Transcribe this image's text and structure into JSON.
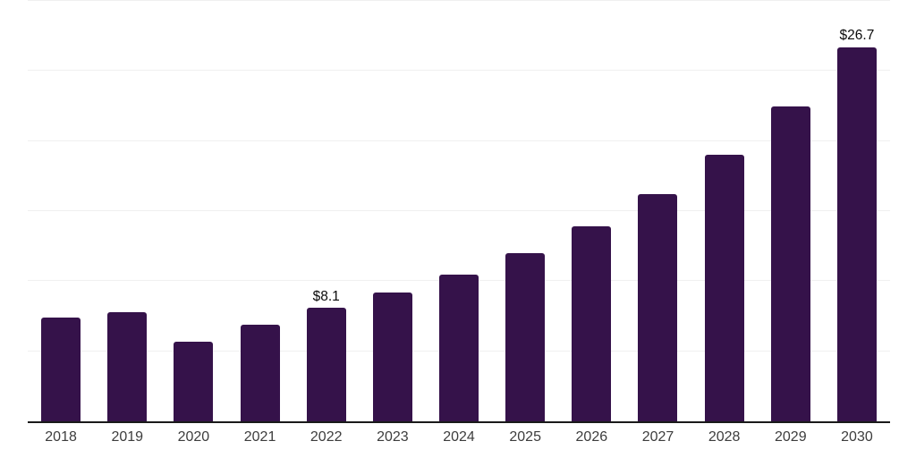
{
  "colors": {
    "background": "#ffffff",
    "bar": "#35124a",
    "gridline": "#f0f0f0",
    "axis_line": "#1a1a1a",
    "tick_label": "#3d3d3d",
    "data_label": "#0a0a0a"
  },
  "chart_data": {
    "type": "bar",
    "title": "",
    "xlabel": "",
    "ylabel": "",
    "categories": [
      "2018",
      "2019",
      "2020",
      "2021",
      "2022",
      "2023",
      "2024",
      "2025",
      "2026",
      "2027",
      "2028",
      "2029",
      "2030"
    ],
    "values": [
      7.4,
      7.8,
      5.7,
      6.9,
      8.1,
      9.2,
      10.5,
      12.0,
      13.9,
      16.2,
      19.0,
      22.5,
      26.7
    ],
    "point_labels": [
      "",
      "",
      "",
      "",
      "$8.1",
      "",
      "",
      "",
      "",
      "",
      "",
      "",
      "$26.7"
    ],
    "ylim": [
      0,
      30
    ],
    "gridline_values": [
      5,
      10,
      15,
      20,
      25,
      30
    ],
    "y_axis_tick_labels_visible": false,
    "grid": "horizontal",
    "legend_position": "none"
  }
}
